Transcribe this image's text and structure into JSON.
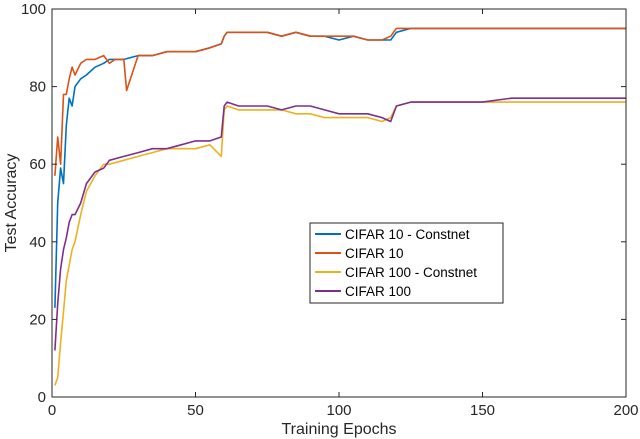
{
  "chart_data": {
    "type": "line",
    "xlabel": "Training Epochs",
    "ylabel": "Test Accuracy",
    "xlim": [
      0,
      200
    ],
    "ylim": [
      0,
      100
    ],
    "xticks": [
      0,
      50,
      100,
      150,
      200
    ],
    "yticks": [
      0,
      20,
      40,
      60,
      80,
      100
    ],
    "grid": false,
    "legend_position": "center-right",
    "series": [
      {
        "name": "CIFAR 10 - Constnet",
        "color": "#0072BD",
        "x": [
          1,
          2,
          3,
          4,
          5,
          6,
          7,
          8,
          10,
          12,
          15,
          18,
          20,
          25,
          30,
          35,
          40,
          45,
          50,
          55,
          59,
          60,
          61,
          65,
          70,
          75,
          80,
          85,
          90,
          95,
          100,
          105,
          110,
          115,
          118,
          120,
          125,
          130,
          140,
          150,
          160,
          170,
          180,
          190,
          200
        ],
        "y": [
          23,
          50,
          59,
          55,
          70,
          77,
          75,
          80,
          82,
          83,
          85,
          86,
          87,
          87,
          88,
          88,
          89,
          89,
          89,
          90,
          91,
          93,
          94,
          94,
          94,
          94,
          93,
          94,
          93,
          93,
          92,
          93,
          92,
          92,
          92,
          94,
          95,
          95,
          95,
          95,
          95,
          95,
          95,
          95,
          95
        ]
      },
      {
        "name": "CIFAR 10",
        "color": "#D95319",
        "x": [
          1,
          2,
          3,
          4,
          5,
          6,
          7,
          8,
          10,
          12,
          15,
          18,
          20,
          22,
          25,
          26,
          30,
          35,
          40,
          45,
          50,
          55,
          59,
          60,
          61,
          65,
          70,
          75,
          80,
          85,
          90,
          95,
          100,
          105,
          110,
          115,
          118,
          120,
          125,
          130,
          140,
          150,
          160,
          170,
          180,
          190,
          200
        ],
        "y": [
          57,
          67,
          60,
          78,
          78,
          82,
          85,
          83,
          86,
          87,
          87,
          88,
          86,
          87,
          87,
          79,
          88,
          88,
          89,
          89,
          89,
          90,
          91,
          93,
          94,
          94,
          94,
          94,
          93,
          94,
          93,
          93,
          93,
          93,
          92,
          92,
          93,
          95,
          95,
          95,
          95,
          95,
          95,
          95,
          95,
          95,
          95
        ]
      },
      {
        "name": "CIFAR 100 - Constnet",
        "color": "#EDB120",
        "x": [
          1,
          2,
          3,
          4,
          5,
          6,
          7,
          8,
          10,
          12,
          15,
          18,
          20,
          25,
          30,
          35,
          40,
          45,
          50,
          55,
          59,
          60,
          61,
          65,
          70,
          75,
          80,
          85,
          90,
          95,
          100,
          105,
          110,
          115,
          118,
          120,
          125,
          130,
          140,
          150,
          160,
          170,
          180,
          190,
          200
        ],
        "y": [
          3,
          5,
          14,
          22,
          30,
          34,
          38,
          40,
          47,
          53,
          57,
          60,
          60,
          61,
          62,
          63,
          64,
          64,
          64,
          65,
          62,
          74,
          75,
          74,
          74,
          74,
          74,
          73,
          73,
          72,
          72,
          72,
          72,
          71,
          72,
          75,
          76,
          76,
          76,
          76,
          76,
          76,
          76,
          76,
          76
        ]
      },
      {
        "name": "CIFAR 100",
        "color": "#7E2F8E",
        "x": [
          1,
          2,
          3,
          4,
          5,
          6,
          7,
          8,
          10,
          12,
          15,
          18,
          20,
          25,
          30,
          35,
          40,
          45,
          50,
          55,
          59,
          60,
          61,
          65,
          70,
          75,
          80,
          85,
          90,
          95,
          100,
          105,
          110,
          115,
          118,
          120,
          125,
          130,
          140,
          150,
          160,
          170,
          180,
          190,
          200
        ],
        "y": [
          12,
          24,
          33,
          38,
          41,
          45,
          47,
          47,
          50,
          55,
          58,
          59,
          61,
          62,
          63,
          64,
          64,
          65,
          66,
          66,
          67,
          75,
          76,
          75,
          75,
          75,
          74,
          75,
          75,
          74,
          73,
          73,
          73,
          72,
          71,
          75,
          76,
          76,
          76,
          76,
          77,
          77,
          77,
          77,
          77
        ]
      }
    ]
  }
}
